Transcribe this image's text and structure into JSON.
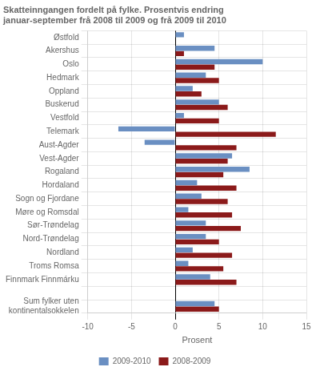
{
  "chart_data": {
    "type": "bar",
    "orientation": "horizontal",
    "title": "Skatteinngangen fordelt på fylke. Prosentvis endring",
    "subtitle": "januar-september frå 2008 til 2009 og frå 2009 til 2010",
    "categories": [
      "Østfold",
      "Akershus",
      "Oslo",
      "Hedmark",
      "Oppland",
      "Buskerud",
      "Vestfold",
      "Telemark",
      "Aust-Agder",
      "Vest-Agder",
      "Rogaland",
      "Hordaland",
      "Sogn og Fjordane",
      "Møre og Romsdal",
      "Sør-Trøndelag",
      "Nord-Trøndelag",
      "Nordland",
      "Troms Romsa",
      "Finnmark Finnmárku",
      null,
      "Sum fylker uten\nkontinentalsokkelen"
    ],
    "series": [
      {
        "name": "2009-2010",
        "color": "#6A8FC2",
        "values": [
          1.0,
          4.5,
          10.0,
          3.5,
          2.0,
          5.0,
          1.0,
          -6.5,
          -3.5,
          6.5,
          8.5,
          2.5,
          3.0,
          1.5,
          3.5,
          3.5,
          2.0,
          1.5,
          4.0,
          0.0,
          4.5
        ]
      },
      {
        "name": "2008-2009",
        "color": "#8B1A1A",
        "values": [
          0.0,
          1.0,
          4.5,
          5.0,
          3.0,
          6.0,
          5.0,
          11.5,
          7.0,
          6.0,
          5.5,
          7.0,
          6.0,
          6.5,
          7.5,
          5.0,
          6.5,
          5.5,
          7.0,
          0.0,
          5.0
        ]
      }
    ],
    "xlabel": "Prosent",
    "xlim": [
      -10,
      15
    ],
    "xticks": [
      -10,
      -5,
      0,
      5,
      10,
      15
    ],
    "grid": true,
    "legend": "bottom"
  }
}
